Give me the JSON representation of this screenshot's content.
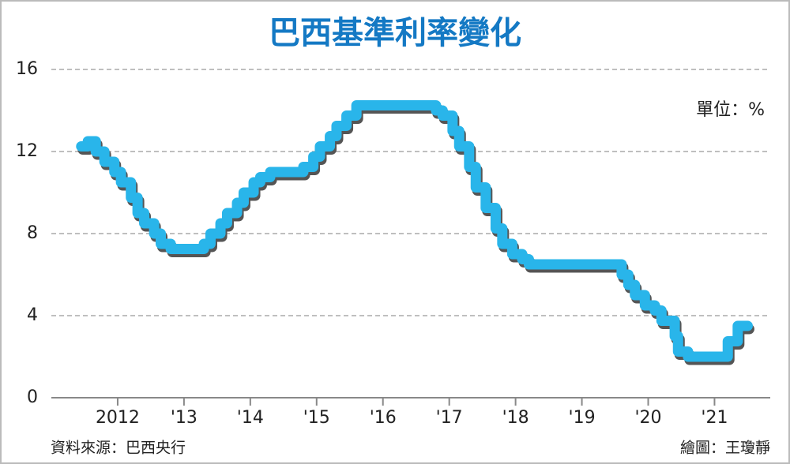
{
  "chart_data": {
    "type": "line",
    "step": true,
    "title": "巴西基準利率變化",
    "unit_note": "單位：%",
    "source": "資料來源：巴西央行",
    "credit": "繪圖：王瓊靜",
    "series": [
      {
        "name": "巴西基準利率",
        "color": "#29b5ea",
        "x": [
          2011.45,
          2011.55,
          2011.67,
          2011.8,
          2011.95,
          2012.05,
          2012.2,
          2012.3,
          2012.4,
          2012.55,
          2012.65,
          2012.8,
          2013.3,
          2013.4,
          2013.55,
          2013.65,
          2013.8,
          2013.9,
          2014.05,
          2014.15,
          2014.3,
          2014.8,
          2014.95,
          2015.05,
          2015.2,
          2015.3,
          2015.45,
          2015.6,
          2016.8,
          2016.9,
          2017.05,
          2017.15,
          2017.3,
          2017.4,
          2017.55,
          2017.7,
          2017.8,
          2017.95,
          2018.1,
          2018.2,
          2019.6,
          2019.7,
          2019.8,
          2019.95,
          2020.1,
          2020.2,
          2020.4,
          2020.45,
          2020.6,
          2021.2,
          2021.35,
          2021.5
        ],
        "values": [
          12.25,
          12.5,
          12.0,
          11.5,
          11.0,
          10.5,
          9.75,
          9.0,
          8.5,
          8.0,
          7.5,
          7.25,
          7.5,
          8.0,
          8.5,
          9.0,
          9.5,
          10.0,
          10.5,
          10.75,
          11.0,
          11.25,
          11.75,
          12.25,
          12.75,
          13.25,
          13.75,
          14.25,
          14.0,
          13.75,
          13.0,
          12.25,
          11.25,
          10.25,
          9.25,
          8.25,
          7.5,
          7.0,
          6.75,
          6.5,
          6.0,
          5.5,
          5.0,
          4.5,
          4.25,
          3.75,
          3.0,
          2.25,
          2.0,
          2.75,
          3.5,
          3.5
        ]
      }
    ],
    "xlim": [
      2011,
      2021.9
    ],
    "xticks": [
      {
        "value": 2012,
        "label": "2012"
      },
      {
        "value": 2013,
        "label": "'13"
      },
      {
        "value": 2014,
        "label": "'14"
      },
      {
        "value": 2015,
        "label": "'15"
      },
      {
        "value": 2016,
        "label": "'16"
      },
      {
        "value": 2017,
        "label": "'17"
      },
      {
        "value": 2018,
        "label": "'18"
      },
      {
        "value": 2019,
        "label": "'19"
      },
      {
        "value": 2020,
        "label": "'20"
      },
      {
        "value": 2021,
        "label": "'21"
      }
    ],
    "ylim": [
      0,
      16
    ],
    "yticks": [
      0,
      4,
      8,
      12,
      16
    ],
    "grid": true
  }
}
